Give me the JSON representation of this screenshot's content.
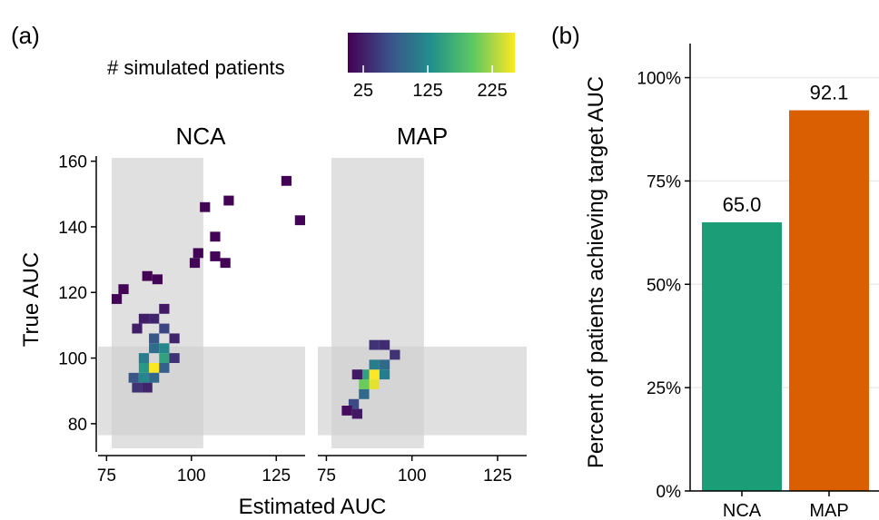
{
  "panel_a": {
    "label": "(a)",
    "legend": {
      "title": "# simulated patients",
      "ticks": [
        25,
        125,
        225
      ],
      "range": [
        1,
        260
      ],
      "colors": [
        "#440154",
        "#3b528b",
        "#21908c",
        "#5dc863",
        "#fde725"
      ]
    },
    "facets": [
      "NCA",
      "MAP"
    ],
    "xlabel": "Estimated AUC",
    "ylabel": "True AUC",
    "xticks": [
      75,
      100,
      125
    ],
    "yticks": [
      80,
      100,
      120,
      140,
      160
    ],
    "xlim": [
      72.5,
      133.5
    ],
    "ylim": [
      72.5,
      161
    ],
    "target_band": [
      76.5,
      103.5
    ]
  },
  "panel_b": {
    "label": "(b)",
    "ylabel": "Percent of patients achieving target AUC",
    "yticks": [
      "0%",
      "25%",
      "50%",
      "75%",
      "100%"
    ],
    "ylim": [
      0,
      110
    ],
    "value_labels": [
      "65.0",
      "92.1"
    ],
    "colors": [
      "#1b9e77",
      "#d95f02"
    ]
  },
  "chart_data": [
    {
      "type": "heatmap",
      "facets": [
        "NCA",
        "MAP"
      ],
      "xlabel": "Estimated AUC",
      "ylabel": "True AUC",
      "colorbar_title": "# simulated patients",
      "colorbar_ticks": [
        25,
        125,
        225
      ],
      "bin_width": 3,
      "cells_note_units": "bin centre x, bin centre y, patient count",
      "cells": {
        "NCA": [
          [
            128,
            154,
            3
          ],
          [
            132,
            142,
            3
          ],
          [
            111,
            148,
            3
          ],
          [
            104,
            146,
            3
          ],
          [
            107,
            137,
            3
          ],
          [
            102,
            132,
            3
          ],
          [
            101,
            129,
            5
          ],
          [
            107,
            131,
            4
          ],
          [
            110,
            129,
            3
          ],
          [
            87,
            125,
            3
          ],
          [
            90,
            124,
            3
          ],
          [
            80,
            121,
            3
          ],
          [
            78,
            118,
            3
          ],
          [
            89,
            106,
            70
          ],
          [
            92,
            109,
            55
          ],
          [
            89,
            103,
            95
          ],
          [
            92,
            103,
            120
          ],
          [
            86,
            100,
            110
          ],
          [
            89,
            97,
            260
          ],
          [
            92,
            100,
            150
          ],
          [
            86,
            97,
            140
          ],
          [
            83,
            94,
            70
          ],
          [
            86,
            94,
            120
          ],
          [
            89,
            94,
            90
          ],
          [
            92,
            97,
            80
          ],
          [
            95,
            100,
            40
          ],
          [
            84,
            91,
            40
          ],
          [
            87,
            91,
            30
          ],
          [
            89,
            112,
            30
          ],
          [
            92,
            115,
            20
          ],
          [
            84,
            109,
            25
          ],
          [
            95,
            106,
            30
          ],
          [
            86,
            112,
            25
          ]
        ],
        "MAP": [
          [
            89,
            95,
            260
          ],
          [
            89,
            92,
            250
          ],
          [
            86,
            92,
            200
          ],
          [
            89,
            98,
            110
          ],
          [
            92,
            98,
            90
          ],
          [
            86,
            89,
            90
          ],
          [
            83,
            86,
            60
          ],
          [
            86,
            95,
            150
          ],
          [
            92,
            95,
            110
          ],
          [
            95,
            101,
            40
          ],
          [
            92,
            104,
            35
          ],
          [
            89,
            104,
            40
          ],
          [
            84,
            83,
            20
          ],
          [
            81,
            84,
            10
          ],
          [
            84,
            95,
            20
          ]
        ]
      }
    },
    {
      "type": "bar",
      "categories": [
        "NCA",
        "MAP"
      ],
      "values": [
        65.0,
        92.1
      ],
      "ylabel": "Percent of patients achieving target AUC",
      "ylim": [
        0,
        110
      ]
    }
  ]
}
